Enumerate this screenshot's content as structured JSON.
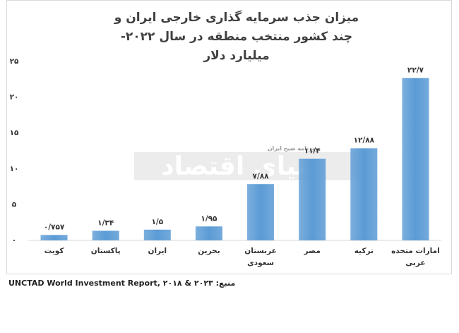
{
  "chart_data": {
    "type": "bar",
    "title": "میزان جذب سرمایه گذاری خارجی ایران و چند کشور منتخب منطقه در سال ۲۰۲۲- میلیارد دلار",
    "categories": [
      "کویت",
      "پاکستان",
      "ایران",
      "بحرین",
      "عربستان سعودی",
      "مصر",
      "ترکیه",
      "امارات متحده عربی"
    ],
    "values": [
      0.757,
      1.34,
      1.5,
      1.95,
      7.88,
      11.4,
      12.88,
      22.7
    ],
    "value_labels": [
      "۰/۷۵۷",
      "۱/۳۴",
      "۱/۵",
      "۱/۹۵",
      "۷/۸۸",
      "۱۱/۴",
      "۱۲/۸۸",
      "۲۲/۷"
    ],
    "color": "#5b9bd5",
    "ylim": [
      0,
      25
    ],
    "yticks": [
      {
        "value": 0,
        "label": "۰"
      },
      {
        "value": 5,
        "label": "۵"
      },
      {
        "value": 10,
        "label": "۱۰"
      },
      {
        "value": 15,
        "label": "۱۵"
      },
      {
        "value": 20,
        "label": "۲۰"
      },
      {
        "value": 25,
        "label": "۲۵"
      }
    ],
    "grid": false,
    "watermark": "دنیای اقتصاد",
    "watermark_tagline": "روزنامه صبح ایران",
    "source": "منبع: UNCTAD World Investment Report, ۲۰۱۸ & ۲۰۲۳"
  }
}
